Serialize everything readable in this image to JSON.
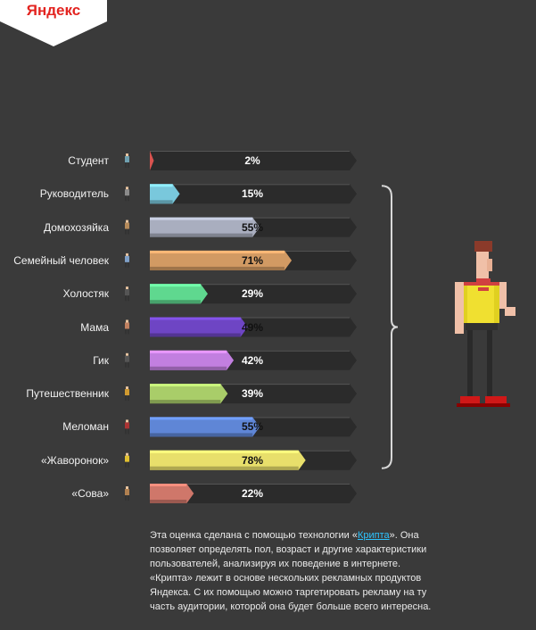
{
  "brand": {
    "logo_text": "Яндекс"
  },
  "chart_data": {
    "type": "bar",
    "orientation": "horizontal",
    "xlim": [
      0,
      100
    ],
    "categories": [
      "Студент",
      "Руководитель",
      "Домохозяйка",
      "Семейный человек",
      "Холостяк",
      "Мама",
      "Гик",
      "Путешественник",
      "Меломан",
      "«Жаворонок»",
      "«Сова»"
    ],
    "values": [
      2,
      15,
      55,
      71,
      29,
      49,
      42,
      39,
      55,
      78,
      22
    ],
    "value_labels": [
      "2%",
      "15%",
      "55%",
      "71%",
      "29%",
      "49%",
      "42%",
      "39%",
      "55%",
      "78%",
      "22%"
    ],
    "colors": [
      "#d9534f",
      "#79c8dc",
      "#a9aebf",
      "#d29a63",
      "#5fd88f",
      "#6e45c4",
      "#c27fe0",
      "#a9cd69",
      "#5f86d6",
      "#e8df6b",
      "#cf776a"
    ]
  },
  "footnote": {
    "before_link": "Эта оценка сделана с помощью технологии «",
    "link": "Крипта",
    "after_link": "». Она позволяет определять пол, возраст и другие характеристики пользователей, анализируя их поведение в интернете. «Крипта» лежит в основе нескольких рекламных продуктов Яндекса. С их помощью можно таргетировать рекламу на ту часть аудитории, которой она будет больше всего интересна."
  }
}
